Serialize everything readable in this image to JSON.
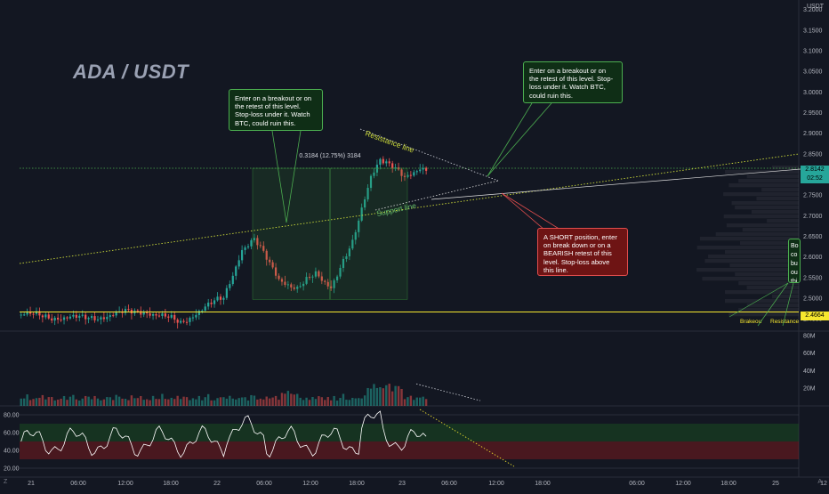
{
  "chart_data": {
    "type": "candlestick",
    "symbol_title": "ADA / USDT",
    "currency": "USDT",
    "y_axis_ticks": [
      "2.4500",
      "2.5000",
      "2.5500",
      "2.6000",
      "2.6500",
      "2.7000",
      "2.7500",
      "2.8000",
      "2.8500",
      "2.9000",
      "2.9500",
      "3.0000",
      "3.0500",
      "3.1000",
      "3.1500",
      "3.2000"
    ],
    "price_range": [
      2.42,
      3.21
    ],
    "current_price": {
      "value": "2.8142",
      "countdown": "02:52",
      "color": "#26a69a"
    },
    "level_price": {
      "value": "2.4664",
      "color": "#f6e72e"
    },
    "x_axis_labels": [
      "21",
      "06:00",
      "12:00",
      "18:00",
      "22",
      "06:00",
      "12:00",
      "18:00",
      "23",
      "06:00",
      "12:00",
      "18:00",
      "06:00",
      "12:00",
      "18:00",
      "25",
      "12"
    ],
    "volume_axis_labels": [
      "80M",
      "60M",
      "40M",
      "20M"
    ],
    "volume_range_millions": [
      0,
      85
    ],
    "rsi_axis_labels": [
      "80.00",
      "60.00",
      "40.00",
      "20.00"
    ],
    "rsi_range": [
      10,
      90
    ],
    "rsi_bands": {
      "upper": 70,
      "lower": 30,
      "mid": 50
    },
    "measure_label": "0.3184 (12.75%) 3184",
    "measure_range": [
      2.497,
      2.815
    ],
    "horizontal_level": 2.4664,
    "dotted_level": 2.815,
    "drawing_labels": {
      "resistance": "Resistance line",
      "support": "Support line",
      "breakout": "Brakeou",
      "resistance_partial": "Resistance"
    },
    "candles": {
      "count": 170,
      "key_points": [
        {
          "i": 0,
          "price": 2.46
        },
        {
          "i": 20,
          "price": 2.45
        },
        {
          "i": 40,
          "price": 2.47
        },
        {
          "i": 52,
          "price": 2.44
        },
        {
          "i": 58,
          "price": 2.47
        },
        {
          "i": 66,
          "price": 2.5
        },
        {
          "i": 72,
          "price": 2.62
        },
        {
          "i": 76,
          "price": 2.64
        },
        {
          "i": 84,
          "price": 2.55
        },
        {
          "i": 90,
          "price": 2.52
        },
        {
          "i": 96,
          "price": 2.56
        },
        {
          "i": 101,
          "price": 2.53
        },
        {
          "i": 108,
          "price": 2.63
        },
        {
          "i": 114,
          "price": 2.8
        },
        {
          "i": 117,
          "price": 2.84
        },
        {
          "i": 125,
          "price": 2.79
        },
        {
          "i": 130,
          "price": 2.82
        },
        {
          "i": 132,
          "price": 2.814
        }
      ]
    }
  },
  "callouts": {
    "left": "Enter on a breakout or on the retest of this level. Stop-loss under it. Watch BTC, could ruin this.",
    "right": "Enter on a breakout or on the retest of this level. Stop-loss under it. Watch BTC, could ruin this.",
    "short": "A SHORT position, enter on break down or on a BEARISH retest of this level. Stop-loss above this line.",
    "edge": "Bo co bu ou thi"
  },
  "bottom": {
    "left_glyph": "Z",
    "right_glyph": "A"
  },
  "colors": {
    "background": "#131722",
    "up": "#26a69a",
    "down": "#ef5350",
    "level": "#f6e72e",
    "support": "#cddc39",
    "rsi": "#ffffff"
  }
}
